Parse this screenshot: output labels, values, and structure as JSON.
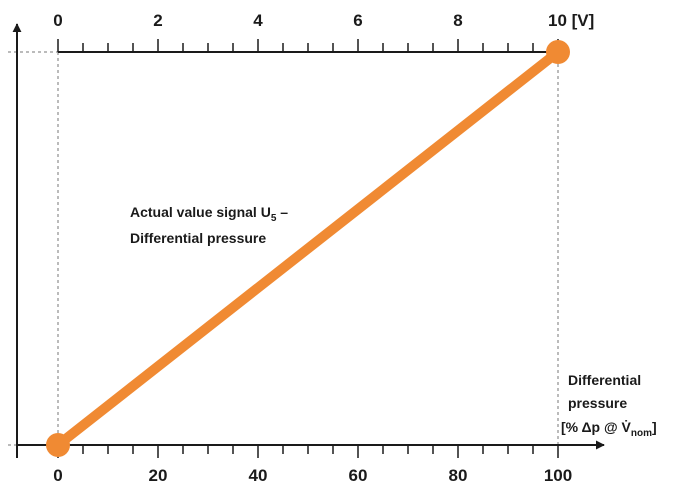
{
  "chart_data": {
    "type": "line",
    "x_bottom": {
      "ticks": [
        0,
        20,
        40,
        60,
        80,
        100
      ],
      "tick_labels": [
        "0",
        "20",
        "40",
        "60",
        "80",
        "100"
      ],
      "range": [
        0,
        100
      ],
      "label_lines": [
        "Differential",
        "pressure"
      ],
      "label_unit": "[% Δp @ V̇",
      "label_unit_sub": "nom",
      "label_unit_close": "]"
    },
    "x_top": {
      "ticks": [
        0,
        2,
        4,
        6,
        8,
        10
      ],
      "tick_labels": [
        "0",
        "2",
        "4",
        "6",
        "8",
        "10 [V]"
      ],
      "range": [
        0,
        10
      ]
    },
    "series": [
      {
        "x": [
          0,
          100
        ],
        "y": [
          0,
          10
        ]
      }
    ],
    "annotation": {
      "line1": "Actual value signal U",
      "line1_sub": "5",
      "line1_tail": " –",
      "line2": "Differential pressure"
    },
    "colors": {
      "line": "#f08a33",
      "axis": "#1a1a1a",
      "guide": "#777777"
    }
  }
}
